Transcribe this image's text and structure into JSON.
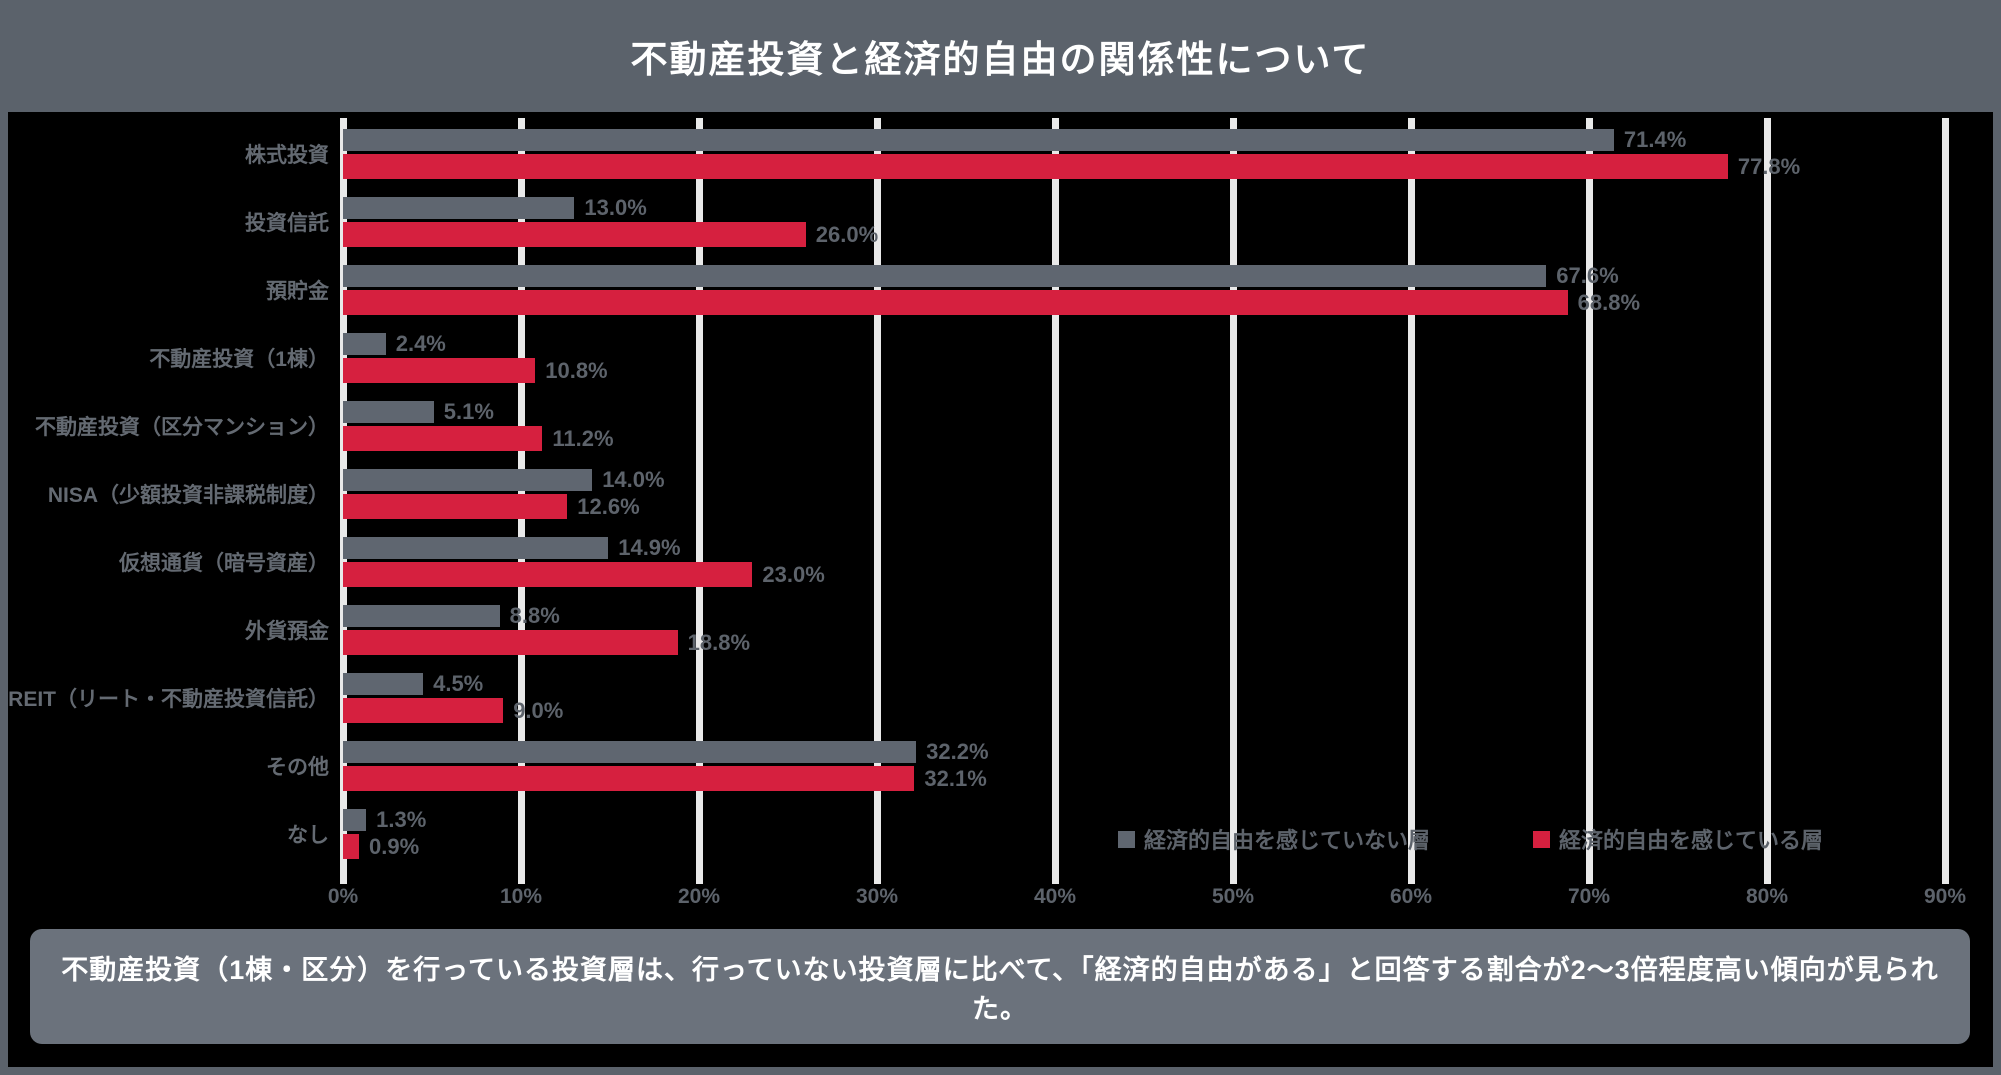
{
  "title": "不動産投資と経済的自由の関係性について",
  "note": "不動産投資（1棟・区分）を行っている投資層は、行っていない投資層に比べて、「経済的自由がある」と回答する割合が2〜3倍程度高い傾向が見られた。",
  "colors": {
    "frame": "#5b626b",
    "chart_background": "#000000",
    "gridline": "#e9e9e9",
    "series_gray": "#5f6670",
    "series_red": "#d6203f",
    "label_text": "#5d636b",
    "title_text": "#ffffff",
    "note_text": "#ffffff"
  },
  "chart_data": {
    "type": "bar",
    "orientation": "horizontal",
    "title": "不動産投資と経済的自由の関係性について",
    "categories": [
      "株式投資",
      "投資信託",
      "預貯金",
      "不動産投資（1棟）",
      "不動産投資（区分マンション）",
      "NISA（少額投資非課税制度）",
      "仮想通貨（暗号資産）",
      "外貨預金",
      "REIT（リート・不動産投資信託）",
      "その他",
      "なし"
    ],
    "series": [
      {
        "name": "経済的自由を感じていない層",
        "color": "#5f6670",
        "values": [
          71.4,
          13.0,
          67.6,
          2.4,
          5.1,
          14.0,
          14.9,
          8.8,
          4.5,
          32.2,
          1.3
        ]
      },
      {
        "name": "経済的自由を感じている層",
        "color": "#d6203f",
        "values": [
          77.8,
          26.0,
          68.8,
          10.8,
          11.2,
          12.6,
          23.0,
          18.8,
          9.0,
          32.1,
          0.9
        ]
      }
    ],
    "value_label_format": "{v}%",
    "x_ticks": [
      "0%",
      "10%",
      "20%",
      "30%",
      "40%",
      "50%",
      "60%",
      "70%",
      "80%",
      "90%"
    ],
    "x_tick_values": [
      0,
      10,
      20,
      30,
      40,
      50,
      60,
      70,
      80,
      90
    ],
    "xlim": [
      0,
      92
    ],
    "grid": true,
    "legend_position": "bottom-right"
  },
  "legend": [
    {
      "label": "経済的自由を感じていない層",
      "color": "#5f6670"
    },
    {
      "label": "経済的自由を感じている層",
      "color": "#d6203f"
    }
  ]
}
